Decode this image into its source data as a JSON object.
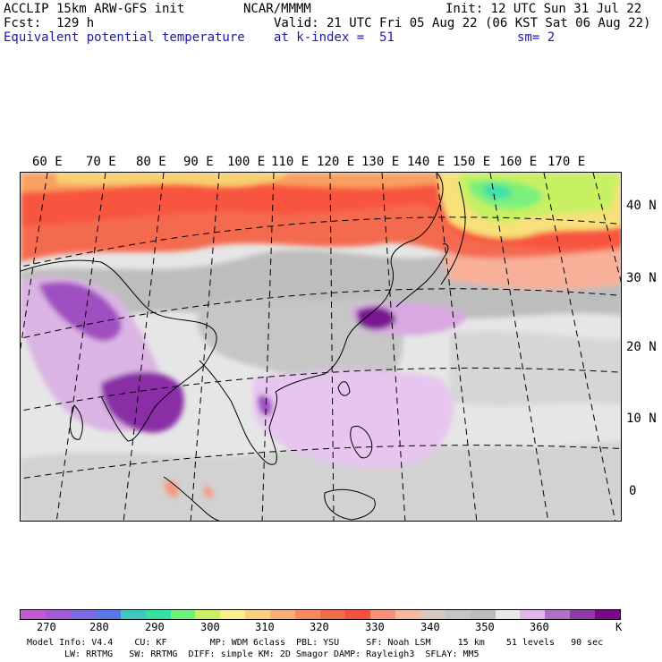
{
  "header": {
    "model": "ACCLIP 15km ARW-GFS init",
    "org": "NCAR/MMMM",
    "init": "Init: 12 UTC Sun 31 Jul 22",
    "fcst": "Fcst:  129 h",
    "valid": "Valid: 21 UTC Fri 05 Aug 22 (06 KST Sat 06 Aug 22)",
    "field": "Equivalent potential temperature",
    "level": "at k-index =  51",
    "smooth": "sm= 2"
  },
  "lon_labels": [
    "60 E",
    "70 E",
    "80 E",
    "90 E",
    "100 E",
    "110 E",
    "120 E",
    "130 E",
    "140 E",
    "150 E",
    "160 E",
    "170 E"
  ],
  "lat_labels": [
    "40 N",
    "30 N",
    "20 N",
    "10 N",
    "0"
  ],
  "colorbar": {
    "colors": [
      "#c25bd0",
      "#a25ad8",
      "#7e6be0",
      "#5a78e8",
      "#3fc8c0",
      "#36e0a0",
      "#6ef07a",
      "#c8f064",
      "#f8f08c",
      "#f8d080",
      "#f8b078",
      "#f88a60",
      "#f06a4c",
      "#f85040",
      "#f89078",
      "#f8b8a0",
      "#d8c8c0",
      "#c8c4c4",
      "#bcbcbc",
      "#e8e8e8",
      "#e0b8e8",
      "#b070c8",
      "#903aa8",
      "#780a88"
    ],
    "labels": [
      "270",
      "280",
      "290",
      "300",
      "310",
      "320",
      "330",
      "340",
      "350",
      "360",
      "K"
    ]
  },
  "footer": {
    "line1": "Model Info: V4.4    CU: KF        MP: WDM 6class  PBL: YSU     SF: Noah LSM     15 km    51 levels   90 sec",
    "line2": "LW: RRTMG   SW: RRTMG  DIFF: simple KM: 2D Smagor DAMP: Rayleigh3  SFLAY: MM5"
  }
}
